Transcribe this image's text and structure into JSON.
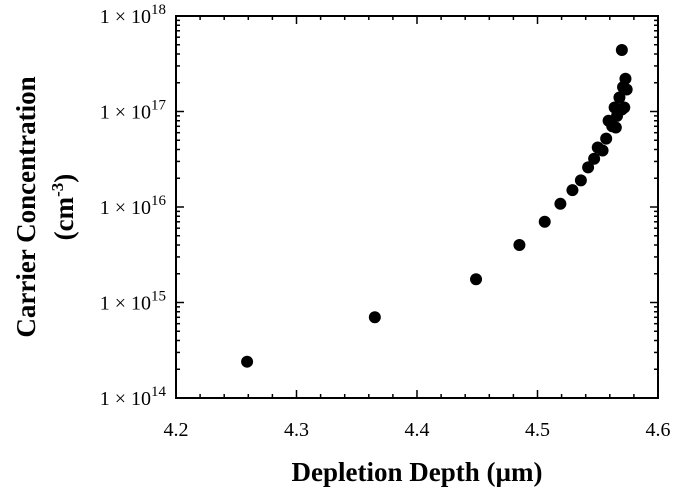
{
  "chart_data": {
    "type": "scatter",
    "xlabel": "Depletion Depth (µm)",
    "ylabel_line1": "Carrier Concentration",
    "ylabel_line2_base": "(cm",
    "ylabel_line2_sup": "-3",
    "ylabel_line2_end": ")",
    "xlim": [
      4.2,
      4.6
    ],
    "ylim": [
      100000000000000.0,
      1e+18
    ],
    "y_scale": "log",
    "grid": false,
    "x_ticks": [
      {
        "value": 4.2,
        "label": "4.2"
      },
      {
        "value": 4.3,
        "label": "4.3"
      },
      {
        "value": 4.4,
        "label": "4.4"
      },
      {
        "value": 4.5,
        "label": "4.5"
      },
      {
        "value": 4.6,
        "label": "4.6"
      }
    ],
    "y_ticks": [
      {
        "value": 100000000000000.0,
        "base": "1 × 10",
        "exp": "14"
      },
      {
        "value": 1000000000000000.0,
        "base": "1 × 10",
        "exp": "15"
      },
      {
        "value": 1e+16,
        "base": "1 × 10",
        "exp": "16"
      },
      {
        "value": 1e+17,
        "base": "1 × 10",
        "exp": "17"
      },
      {
        "value": 1e+18,
        "base": "1 × 10",
        "exp": "18"
      }
    ],
    "points": [
      {
        "x": 4.259,
        "y": 240000000000000.0
      },
      {
        "x": 4.365,
        "y": 700000000000000.0
      },
      {
        "x": 4.449,
        "y": 1750000000000000.0
      },
      {
        "x": 4.485,
        "y": 4000000000000000.0
      },
      {
        "x": 4.506,
        "y": 7000000000000000.0
      },
      {
        "x": 4.519,
        "y": 1.08e+16
      },
      {
        "x": 4.529,
        "y": 1.5e+16
      },
      {
        "x": 4.536,
        "y": 1.9e+16
      },
      {
        "x": 4.542,
        "y": 2.6e+16
      },
      {
        "x": 4.547,
        "y": 3.2e+16
      },
      {
        "x": 4.55,
        "y": 4.2e+16
      },
      {
        "x": 4.554,
        "y": 3.9e+16
      },
      {
        "x": 4.557,
        "y": 5.2e+16
      },
      {
        "x": 4.559,
        "y": 8e+16
      },
      {
        "x": 4.562,
        "y": 7e+16
      },
      {
        "x": 4.564,
        "y": 1.1e+17
      },
      {
        "x": 4.565,
        "y": 6.8e+16
      },
      {
        "x": 4.566,
        "y": 9e+16
      },
      {
        "x": 4.568,
        "y": 1.4e+17
      },
      {
        "x": 4.57,
        "y": 1.05e+17
      },
      {
        "x": 4.571,
        "y": 1.8e+17
      },
      {
        "x": 4.572,
        "y": 1.1e+17
      },
      {
        "x": 4.573,
        "y": 2.2e+17
      },
      {
        "x": 4.574,
        "y": 1.7e+17
      },
      {
        "x": 4.57,
        "y": 4.4e+17
      }
    ]
  }
}
